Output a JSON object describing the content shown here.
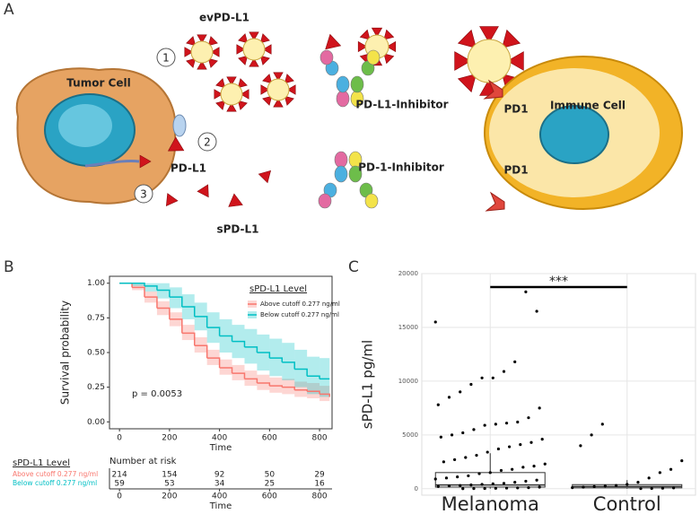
{
  "panels": [
    "A",
    "B",
    "C"
  ],
  "diagram": {
    "ev_label": "evPD-L1",
    "steps": [
      "1",
      "2",
      "3"
    ],
    "tumor_label": "Tumor Cell",
    "pdl1_label": "PD-L1",
    "spdl1_label": "sPD-L1",
    "pdl1_inhibitor": "PD-L1-Inhibitor",
    "pd1_inhibitor": "PD-1-Inhibitor",
    "pd1_labels": [
      "PD1",
      "PD1"
    ],
    "immune_label": "Immune Cell"
  },
  "chart_data": [
    {
      "type": "survival",
      "ylabel": "Survival probability",
      "xlabel": "Time",
      "x": [
        0,
        50,
        100,
        150,
        200,
        250,
        300,
        350,
        400,
        450,
        500,
        550,
        600,
        650,
        700,
        750,
        800,
        840
      ],
      "series": [
        {
          "name": "Above cutoff 0.277 ng/ml",
          "color": "#f8766d",
          "values": [
            1,
            0.97,
            0.9,
            0.82,
            0.74,
            0.64,
            0.55,
            0.46,
            0.39,
            0.35,
            0.31,
            0.28,
            0.26,
            0.25,
            0.23,
            0.22,
            0.2,
            0.18
          ],
          "lower": [
            1,
            0.95,
            0.86,
            0.77,
            0.69,
            0.59,
            0.5,
            0.41,
            0.34,
            0.3,
            0.26,
            0.23,
            0.21,
            0.2,
            0.18,
            0.17,
            0.15,
            0.13
          ],
          "upper": [
            1,
            0.99,
            0.94,
            0.87,
            0.79,
            0.7,
            0.61,
            0.52,
            0.45,
            0.41,
            0.37,
            0.34,
            0.32,
            0.31,
            0.29,
            0.28,
            0.26,
            0.24
          ]
        },
        {
          "name": "Below cutoff 0.277 ng/ml",
          "color": "#00bfc4",
          "values": [
            1,
            1,
            0.98,
            0.95,
            0.9,
            0.83,
            0.76,
            0.68,
            0.62,
            0.58,
            0.54,
            0.5,
            0.46,
            0.43,
            0.38,
            0.33,
            0.31,
            0.31
          ],
          "lower": [
            1,
            0.98,
            0.94,
            0.89,
            0.82,
            0.74,
            0.66,
            0.57,
            0.5,
            0.46,
            0.42,
            0.37,
            0.33,
            0.3,
            0.25,
            0.2,
            0.18,
            0.18
          ],
          "upper": [
            1,
            1,
            1,
            1,
            0.97,
            0.92,
            0.86,
            0.79,
            0.74,
            0.7,
            0.67,
            0.63,
            0.6,
            0.57,
            0.52,
            0.47,
            0.46,
            0.46
          ]
        }
      ],
      "xlim": [
        -40,
        850
      ],
      "xticks": [
        0,
        200,
        400,
        600,
        800
      ],
      "ylim": [
        -0.05,
        1.05
      ],
      "yticks": [
        {
          "value": 0,
          "label": "0.00"
        },
        {
          "value": 0.25,
          "label": "0.25"
        },
        {
          "value": 0.5,
          "label": "0.50"
        },
        {
          "value": 0.75,
          "label": "0.75"
        },
        {
          "value": 1,
          "label": "1.00"
        }
      ],
      "legend_title": "sPD-L1 Level",
      "legend": "top-right",
      "annotation": "p = 0.0053",
      "risk_table": {
        "title": "Number at risk",
        "strata_title": "sPD-L1 Level",
        "times": [
          0,
          200,
          400,
          600,
          800
        ],
        "counts": [
          [
            214,
            154,
            92,
            50,
            29
          ],
          [
            59,
            53,
            34,
            25,
            16
          ]
        ]
      }
    },
    {
      "type": "jitter-box",
      "ylabel": "sPD-L1 pg/ml",
      "categories": [
        "Melanoma",
        "Control"
      ],
      "color": "#000000",
      "points": [
        [
          15500,
          16500,
          18300,
          11800,
          10900,
          10300,
          10300,
          9700,
          9000,
          8500,
          7800,
          7500,
          6600,
          6200,
          6100,
          6000,
          5900,
          5500,
          5200,
          5000,
          4800,
          4600,
          4300,
          4100,
          3900,
          3700,
          3400,
          3100,
          2900,
          2700,
          2500,
          2300,
          2100,
          2000,
          1800,
          1700,
          1500,
          1400,
          1200,
          1100,
          1000,
          900,
          800,
          700,
          600,
          500,
          450,
          400,
          350,
          300,
          250,
          200,
          150,
          100,
          80,
          60,
          40,
          20,
          10,
          5
        ],
        [
          6000,
          5000,
          4000,
          2600,
          1800,
          1500,
          1000,
          600,
          400,
          300,
          250,
          200,
          150,
          100,
          80,
          50,
          30,
          10
        ]
      ],
      "boxes": [
        {
          "whisker_low": 0,
          "q1": 150,
          "median": 350,
          "q3": 1500,
          "whisker_high": 3300
        },
        {
          "whisker_low": 0,
          "q1": 80,
          "median": 200,
          "q3": 380,
          "whisker_high": 800
        }
      ],
      "ylim": [
        -600,
        20000
      ],
      "yticks": [
        0,
        5000,
        10000,
        15000,
        20000
      ],
      "grid": true,
      "significance": "***"
    }
  ]
}
